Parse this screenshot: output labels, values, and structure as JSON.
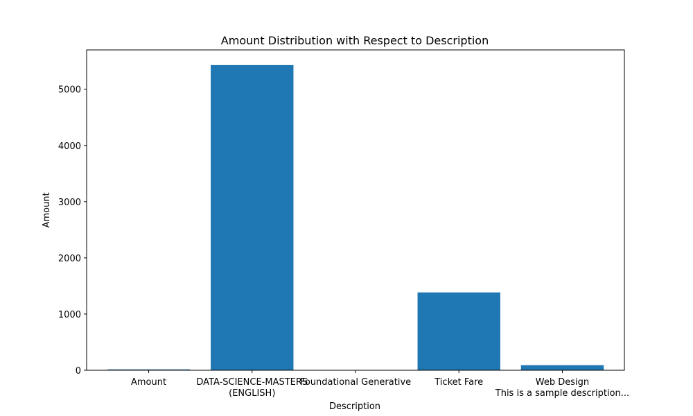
{
  "chart_data": {
    "type": "bar",
    "title": "Amount Distribution with Respect to Description",
    "xlabel": "Description",
    "ylabel": "Amount",
    "categories": [
      "Amount",
      "DATA-SCIENCE-MASTERS\n(ENGLISH)",
      "Foundational Generative",
      "Ticket Fare",
      "Web Design\nThis is a sample description..."
    ],
    "values": [
      15,
      5430,
      5,
      1385,
      90
    ],
    "ylim": [
      0,
      5700
    ],
    "yticks": [
      0,
      1000,
      2000,
      3000,
      4000,
      5000
    ],
    "bar_color": "#1f77b4",
    "grid": false
  }
}
